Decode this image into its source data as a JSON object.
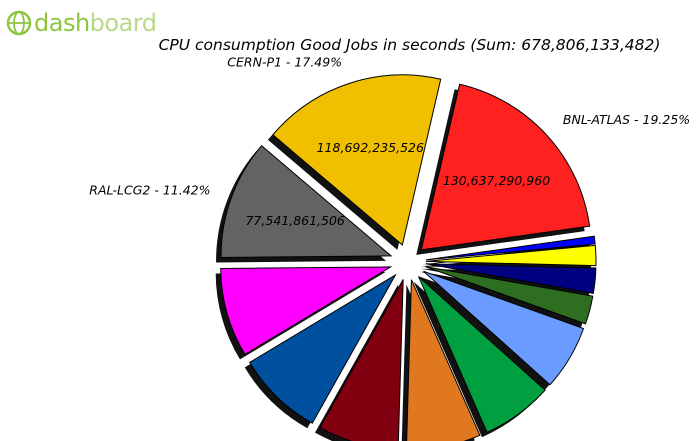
{
  "logo": {
    "text_main": "dash",
    "text_light": "board"
  },
  "chart_data": {
    "type": "pie",
    "title": "CPU consumption Good Jobs in seconds (Sum: 678,806,133,482)",
    "slices": [
      {
        "name": "BNL-ATLAS",
        "percent": 19.25,
        "value": 130637290960,
        "value_label": "130,637,290,960",
        "label": "BNL-ATLAS - 19.25%",
        "color": "#ff2020"
      },
      {
        "name": "CERN-P1",
        "percent": 17.49,
        "value": 118692235526,
        "value_label": "118,692,235,526",
        "label": "CERN-P1 - 17.49%",
        "color": "#f0c000"
      },
      {
        "name": "RAL-LCG2",
        "percent": 11.42,
        "value": 77541861506,
        "value_label": "77,541,861,506",
        "label": "RAL-LCG2 - 11.42%",
        "color": "#636363"
      },
      {
        "name": "",
        "percent": 8.5,
        "color": "#ff00ff"
      },
      {
        "name": "",
        "percent": 8.3,
        "color": "#0050a0"
      },
      {
        "name": "",
        "percent": 7.7,
        "color": "#800010"
      },
      {
        "name": "",
        "percent": 7.1,
        "color": "#e07820"
      },
      {
        "name": "",
        "percent": 6.8,
        "color": "#00a040"
      },
      {
        "name": "",
        "percent": 6.2,
        "color": "#6a9cff"
      },
      {
        "name": "",
        "percent": 2.7,
        "color": "#2e6e20"
      },
      {
        "name": "",
        "percent": 2.4,
        "color": "#000080"
      },
      {
        "name": "",
        "percent": 1.9,
        "color": "#ffff00"
      },
      {
        "name": "",
        "percent": 0.73,
        "color": "#0000ff"
      }
    ]
  }
}
